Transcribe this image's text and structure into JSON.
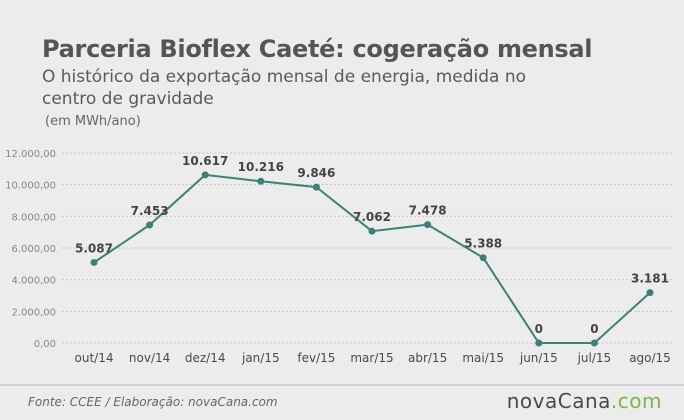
{
  "header": {
    "title": "Parceria Bioflex Caeté: cogeração mensal",
    "subtitle": "O histórico da exportação mensal de energia, medida no centro de gravidade",
    "unit": "(em MWh/ano)"
  },
  "footer": {
    "source": "Fonte:  CCEE / Elaboração:  novaCana.com",
    "brand_part1": "nova",
    "brand_part2": "Cana",
    "brand_part3": ".com"
  },
  "colors": {
    "line": "#3f7f7a",
    "grid": "#c8c8c8",
    "brand_accent": "#7ab648"
  },
  "chart_data": {
    "type": "line",
    "categories": [
      "out/14",
      "nov/14",
      "dez/14",
      "jan/15",
      "fev/15",
      "mar/15",
      "abr/15",
      "mai/15",
      "jun/15",
      "jul/15",
      "ago/15"
    ],
    "values": [
      5087,
      7453,
      10617,
      10216,
      9846,
      7062,
      7478,
      5388,
      0,
      0,
      3181
    ],
    "data_labels": [
      "5.087",
      "7.453",
      "10.617",
      "10.216",
      "9.846",
      "7.062",
      "7.478",
      "5.388",
      "0",
      "0",
      "3.181"
    ],
    "y_ticks": [
      0,
      2000,
      4000,
      6000,
      8000,
      10000,
      12000
    ],
    "y_tick_labels": [
      "0,00",
      "2.000,00",
      "4.000,00",
      "6.000,00",
      "8.000,00",
      "10.000,00",
      "12.000,00"
    ],
    "ylim": [
      0,
      12000
    ],
    "grid": true
  }
}
